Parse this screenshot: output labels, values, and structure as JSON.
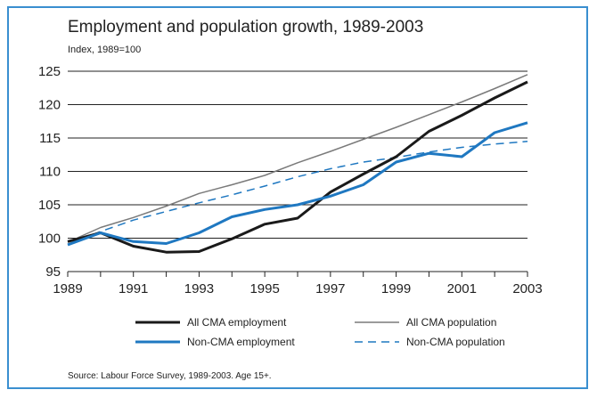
{
  "chart_data": {
    "type": "line",
    "title": "Employment and population growth, 1989-2003",
    "ylabel": "Index, 1989=100",
    "xlabel": "",
    "source": "Source: Labour Force Survey, 1989-2003. Age 15+.",
    "x": [
      1989,
      1990,
      1991,
      1992,
      1993,
      1994,
      1995,
      1996,
      1997,
      1998,
      1999,
      2000,
      2001,
      2002,
      2003
    ],
    "x_ticks": [
      "1989",
      "1991",
      "1993",
      "1995",
      "1997",
      "1999",
      "2001",
      "2003"
    ],
    "y_ticks": [
      "95",
      "100",
      "105",
      "110",
      "115",
      "120",
      "125"
    ],
    "xlim": [
      1989,
      2003
    ],
    "ylim": [
      95,
      125
    ],
    "grid": true,
    "legend_position": "bottom",
    "series": [
      {
        "name": "All CMA employment",
        "color": "#1a1a1a",
        "style": "solid-thick",
        "values": [
          99.5,
          100.8,
          98.8,
          97.9,
          98.0,
          99.9,
          102.1,
          103.0,
          106.9,
          109.6,
          112.2,
          116.0,
          118.4,
          121.0,
          123.4
        ]
      },
      {
        "name": "All CMA population",
        "color": "#7a7a7a",
        "style": "solid-thin",
        "values": [
          99.4,
          101.6,
          103.1,
          104.8,
          106.7,
          108.0,
          109.4,
          111.3,
          113.0,
          114.8,
          116.6,
          118.5,
          120.4,
          122.4,
          124.5
        ]
      },
      {
        "name": "Non-CMA employment",
        "color": "#1f78c1",
        "style": "solid-thick",
        "values": [
          99.0,
          100.8,
          99.5,
          99.2,
          100.8,
          103.2,
          104.3,
          105.0,
          106.3,
          108.0,
          111.4,
          112.7,
          112.2,
          115.8,
          117.3
        ]
      },
      {
        "name": "Non-CMA population",
        "color": "#1f78c1",
        "style": "dashed",
        "values": [
          99.1,
          101.0,
          102.7,
          104.0,
          105.3,
          106.5,
          107.8,
          109.2,
          110.4,
          111.4,
          112.1,
          112.9,
          113.6,
          114.1,
          114.5
        ]
      }
    ]
  }
}
